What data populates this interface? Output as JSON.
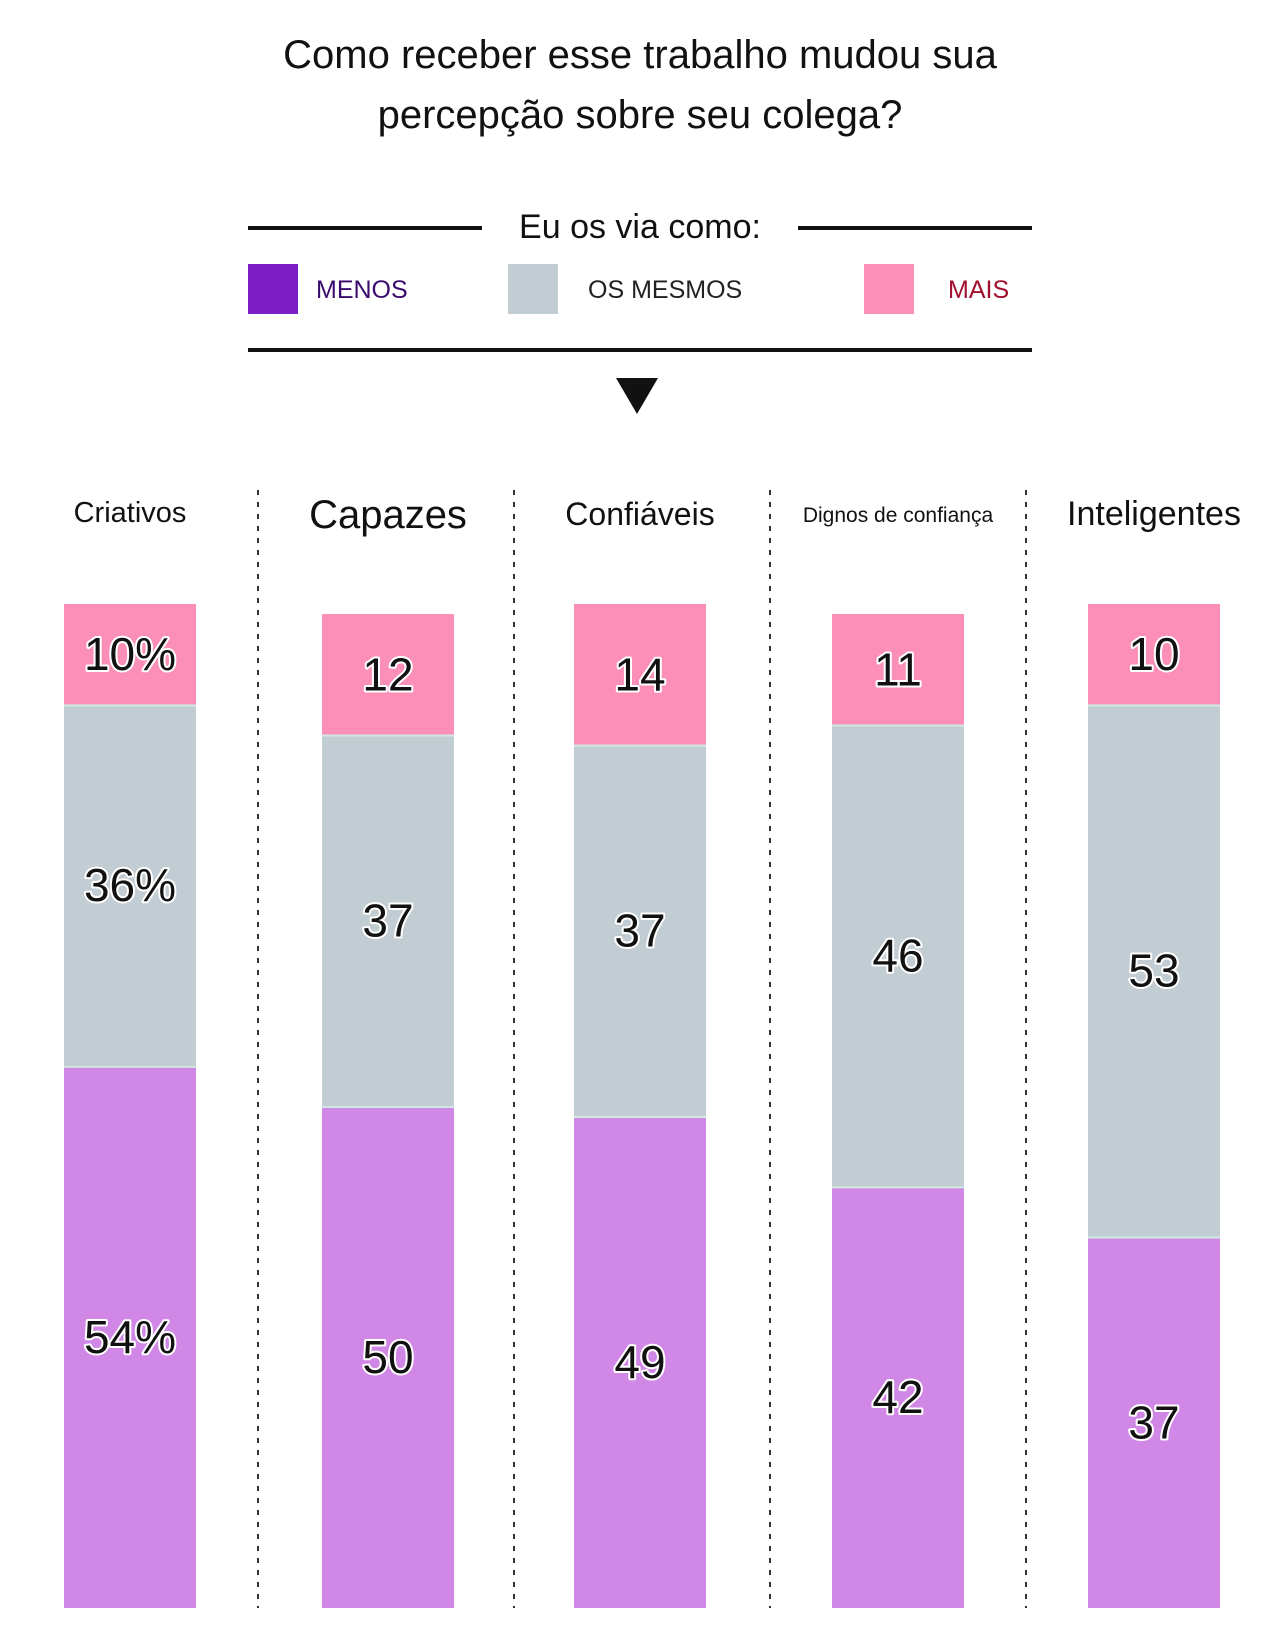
{
  "chart_data": {
    "type": "bar",
    "stacked": true,
    "title": "Como receber esse trabalho mudou sua percepção sobre seu colega?",
    "title_lines": [
      "Como receber esse trabalho mudou sua",
      "percepção sobre seu colega?"
    ],
    "legend_heading": "Eu os via como:",
    "categories": [
      "Criativos",
      "Capazes",
      "Confiáveis",
      "Dignos de confiança",
      "Inteligentes"
    ],
    "series": [
      {
        "key": "menos",
        "name": "MENOS",
        "swatch_color": "#7b1fc4",
        "text_color": "#3a0a6e",
        "values": [
          54,
          50,
          49,
          42,
          37
        ],
        "labels": [
          "54%",
          "50",
          "49",
          "42",
          "37"
        ]
      },
      {
        "key": "mesmos",
        "name": "OS MESMOS",
        "swatch_color": "#c2ccd3",
        "text_color": "#222222",
        "values": [
          36,
          37,
          37,
          46,
          53
        ],
        "labels": [
          "36%",
          "37",
          "37",
          "46",
          "53"
        ]
      },
      {
        "key": "mais",
        "name": "MAIS",
        "swatch_color": "#fb8fb8",
        "text_color": "#a0102e",
        "values": [
          10,
          12,
          14,
          11,
          10
        ],
        "labels": [
          "10%",
          "12",
          "14",
          "11",
          "10"
        ]
      }
    ],
    "bar_colors": {
      "menos": "#d087e6",
      "mesmos": "#c2ccd3",
      "mais": "#fb8fb8"
    },
    "ylim": [
      0,
      100
    ],
    "legend": "top"
  }
}
